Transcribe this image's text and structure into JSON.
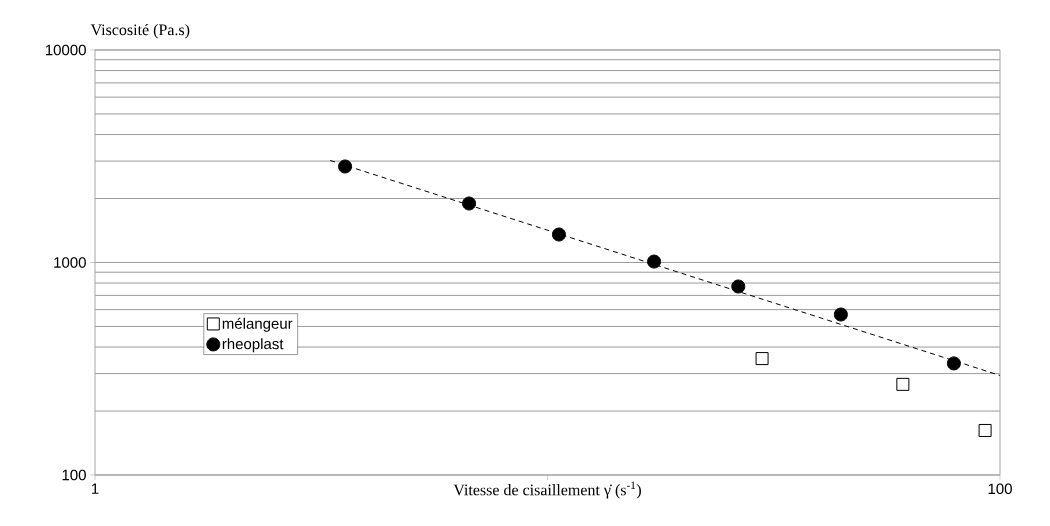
{
  "chart_data": {
    "type": "scatter",
    "xlabel": "Vitesse de cisaillement γ̇ (s$^{-1}$)",
    "ylabel": "Viscosité (Pa.s)",
    "log": "xy",
    "xlim": [
      1,
      100
    ],
    "ylim": [
      100,
      10000
    ],
    "xticks": [
      1,
      {
        "value": 10,
        "label": null
      },
      100
    ],
    "yticks": [
      100,
      1000,
      10000
    ],
    "grid": "y",
    "legend": "left",
    "series": [
      {
        "name": "mélangeur",
        "color": "#000000",
        "marker": "square",
        "x": [
          29.8,
          61.0,
          92.7
        ],
        "values": [
          353,
          267,
          162
        ]
      },
      {
        "name": "rheoplast",
        "color": "#000000",
        "marker": "circle",
        "x": [
          3.57,
          6.71,
          10.6,
          17.2,
          26.4,
          44.5,
          79.1
        ],
        "values": [
          2830,
          1895,
          1354,
          1010,
          771,
          569,
          335
        ]
      },
      {
        "type": "line",
        "line_style": "dashed",
        "marker": "none",
        "color": "#000000",
        "x": [
          3.31,
          100
        ],
        "values": [
          3020,
          294
        ]
      }
    ]
  }
}
